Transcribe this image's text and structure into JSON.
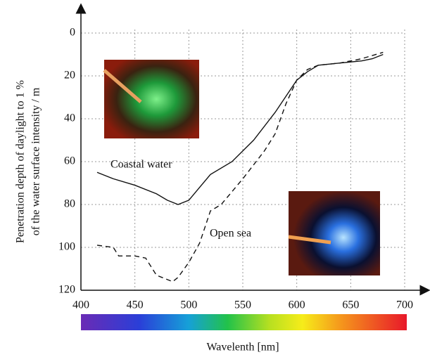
{
  "chart_data": {
    "type": "line",
    "ylabel": [
      "Penetration depth of daylight to 1 %",
      "of the water surface intensity / m"
    ],
    "xlabel": "Wavelenth [nm]",
    "xlim": [
      400,
      700
    ],
    "xticks": [
      400,
      450,
      500,
      550,
      600,
      650,
      700
    ],
    "ylim": [
      0,
      120
    ],
    "yticks": [
      0,
      20,
      40,
      60,
      80,
      100,
      120
    ],
    "y_inverted": true,
    "grid": true,
    "annotations": [
      "Coastal water",
      "Open sea"
    ],
    "series": [
      {
        "name": "Coastal water",
        "color": "#111111",
        "style": "solid",
        "x": [
          415,
          430,
          450,
          470,
          480,
          490,
          500,
          510,
          520,
          540,
          560,
          580,
          600,
          610,
          620,
          640,
          660,
          670,
          680
        ],
        "values": [
          65,
          68,
          71,
          75,
          78,
          80,
          78,
          72,
          66,
          60,
          50,
          37,
          22,
          18,
          15,
          14,
          13,
          12,
          10
        ]
      },
      {
        "name": "Open sea",
        "color": "#111111",
        "style": "dashed",
        "x": [
          415,
          430,
          435,
          450,
          460,
          470,
          480,
          485,
          490,
          500,
          510,
          520,
          530,
          550,
          570,
          580,
          590,
          600,
          610,
          620,
          640,
          660,
          680
        ],
        "values": [
          99,
          100,
          104,
          104,
          105,
          113,
          115,
          116,
          114,
          107,
          98,
          83,
          80,
          68,
          55,
          47,
          33,
          22,
          17,
          15,
          14,
          12,
          9
        ]
      }
    ]
  }
}
